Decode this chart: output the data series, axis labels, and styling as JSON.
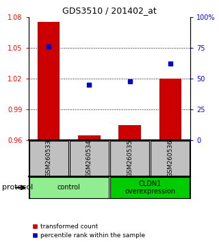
{
  "title": "GDS3510 / 201402_at",
  "samples": [
    "GSM260533",
    "GSM260534",
    "GSM260535",
    "GSM260536"
  ],
  "bar_values": [
    1.075,
    0.965,
    0.975,
    1.02
  ],
  "bar_baseline": 0.96,
  "blue_values": [
    76,
    45,
    48,
    62
  ],
  "ylim_left": [
    0.96,
    1.08
  ],
  "ylim_right": [
    0,
    100
  ],
  "yticks_left": [
    0.96,
    0.99,
    1.02,
    1.05,
    1.08
  ],
  "yticks_right": [
    0,
    25,
    50,
    75,
    100
  ],
  "bar_color": "#cc0000",
  "blue_color": "#0000cc",
  "groups": [
    {
      "label": "control",
      "samples": [
        0,
        1
      ],
      "color": "#90ee90"
    },
    {
      "label": "CLDN1\noverexpression",
      "samples": [
        2,
        3
      ],
      "color": "#00cc00"
    }
  ],
  "group_box_color": "#c0c0c0",
  "legend_red_label": "transformed count",
  "legend_blue_label": "percentile rank within the sample",
  "protocol_label": "protocol"
}
